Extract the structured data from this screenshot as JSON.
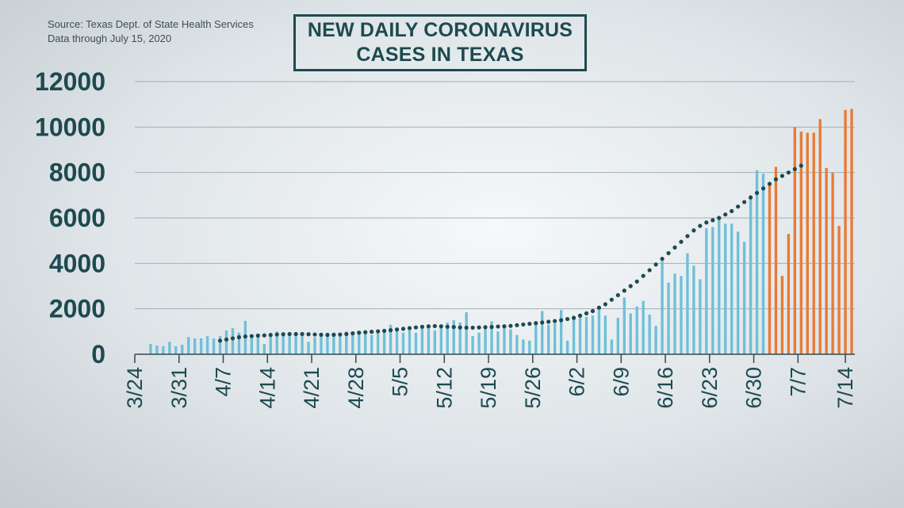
{
  "source": {
    "line1": "Source: Texas Dept. of State Health Services",
    "line2": "Data through  July 15, 2020"
  },
  "title": {
    "line1": "NEW DAILY CORONAVIRUS",
    "line2": "CASES IN TEXAS"
  },
  "colors": {
    "bar_blue": "#6fbfd9",
    "bar_orange": "#e97a35",
    "trend_dot": "#1d4a50",
    "text": "#1d4a50",
    "grid": "#9fb0b8"
  },
  "chart_data": {
    "type": "bar",
    "ylim": [
      0,
      12000
    ],
    "y_ticks": [
      "0",
      "2000",
      "4000",
      "6000",
      "8000",
      "10000",
      "12000"
    ],
    "x_tick_labels": [
      "3/24",
      "3/31",
      "4/7",
      "4/14",
      "4/21",
      "4/28",
      "5/5",
      "5/12",
      "5/19",
      "5/26",
      "6/2",
      "6/9",
      "6/16",
      "6/23",
      "6/30",
      "7/7",
      "7/14"
    ],
    "x_tick_days": [
      0,
      7,
      14,
      21,
      28,
      35,
      42,
      49,
      56,
      63,
      70,
      77,
      84,
      91,
      98,
      105,
      112
    ],
    "first_date": "3/24",
    "last_date": "7/15",
    "daily_new_cases": [
      0,
      0,
      450,
      380,
      350,
      550,
      350,
      420,
      760,
      700,
      700,
      800,
      700,
      800,
      1050,
      1150,
      950,
      1470,
      800,
      900,
      450,
      800,
      1000,
      900,
      850,
      950,
      800,
      550,
      750,
      900,
      950,
      950,
      900,
      1000,
      900,
      950,
      950,
      850,
      1000,
      1100,
      1300,
      1050,
      950,
      1050,
      950,
      1150,
      1250,
      1050,
      1200,
      1400,
      1500,
      1400,
      1850,
      800,
      950,
      1250,
      1450,
      1000,
      1300,
      1100,
      850,
      650,
      600,
      1400,
      1900,
      1300,
      1350,
      1950,
      600,
      1700,
      1700,
      1650,
      1700,
      1950,
      1700,
      650,
      1600,
      2500,
      1800,
      2100,
      2350,
      1750,
      1250,
      4100,
      3150,
      3550,
      3450,
      4450,
      3900,
      3300,
      5550,
      5600,
      6000,
      5750,
      5750,
      5400,
      4950,
      7000,
      8100,
      7950,
      7550,
      8250,
      3450,
      5300,
      10000,
      9800,
      9750,
      9750,
      10350,
      8200,
      8000,
      5650,
      10750,
      10800
    ],
    "orange_from_index": 100,
    "trend_start_index": 13,
    "trend_7day_average": [
      600,
      650,
      700,
      750,
      780,
      800,
      820,
      830,
      850,
      870,
      880,
      890,
      890,
      890,
      880,
      870,
      860,
      850,
      860,
      870,
      890,
      920,
      950,
      970,
      990,
      1010,
      1030,
      1060,
      1090,
      1120,
      1150,
      1180,
      1210,
      1230,
      1240,
      1230,
      1210,
      1200,
      1180,
      1170,
      1170,
      1180,
      1190,
      1200,
      1220,
      1230,
      1250,
      1280,
      1310,
      1340,
      1370,
      1400,
      1430,
      1460,
      1500,
      1550,
      1600,
      1700,
      1800,
      1900,
      2050,
      2200,
      2400,
      2600,
      2800,
      3000,
      3200,
      3450,
      3700,
      3950,
      4200,
      4450,
      4700,
      4950,
      5200,
      5450,
      5650,
      5800,
      5900,
      6000,
      6150,
      6300,
      6500,
      6700,
      6900,
      7100,
      7300,
      7500,
      7700,
      7850,
      8000,
      8150,
      8300
    ]
  }
}
